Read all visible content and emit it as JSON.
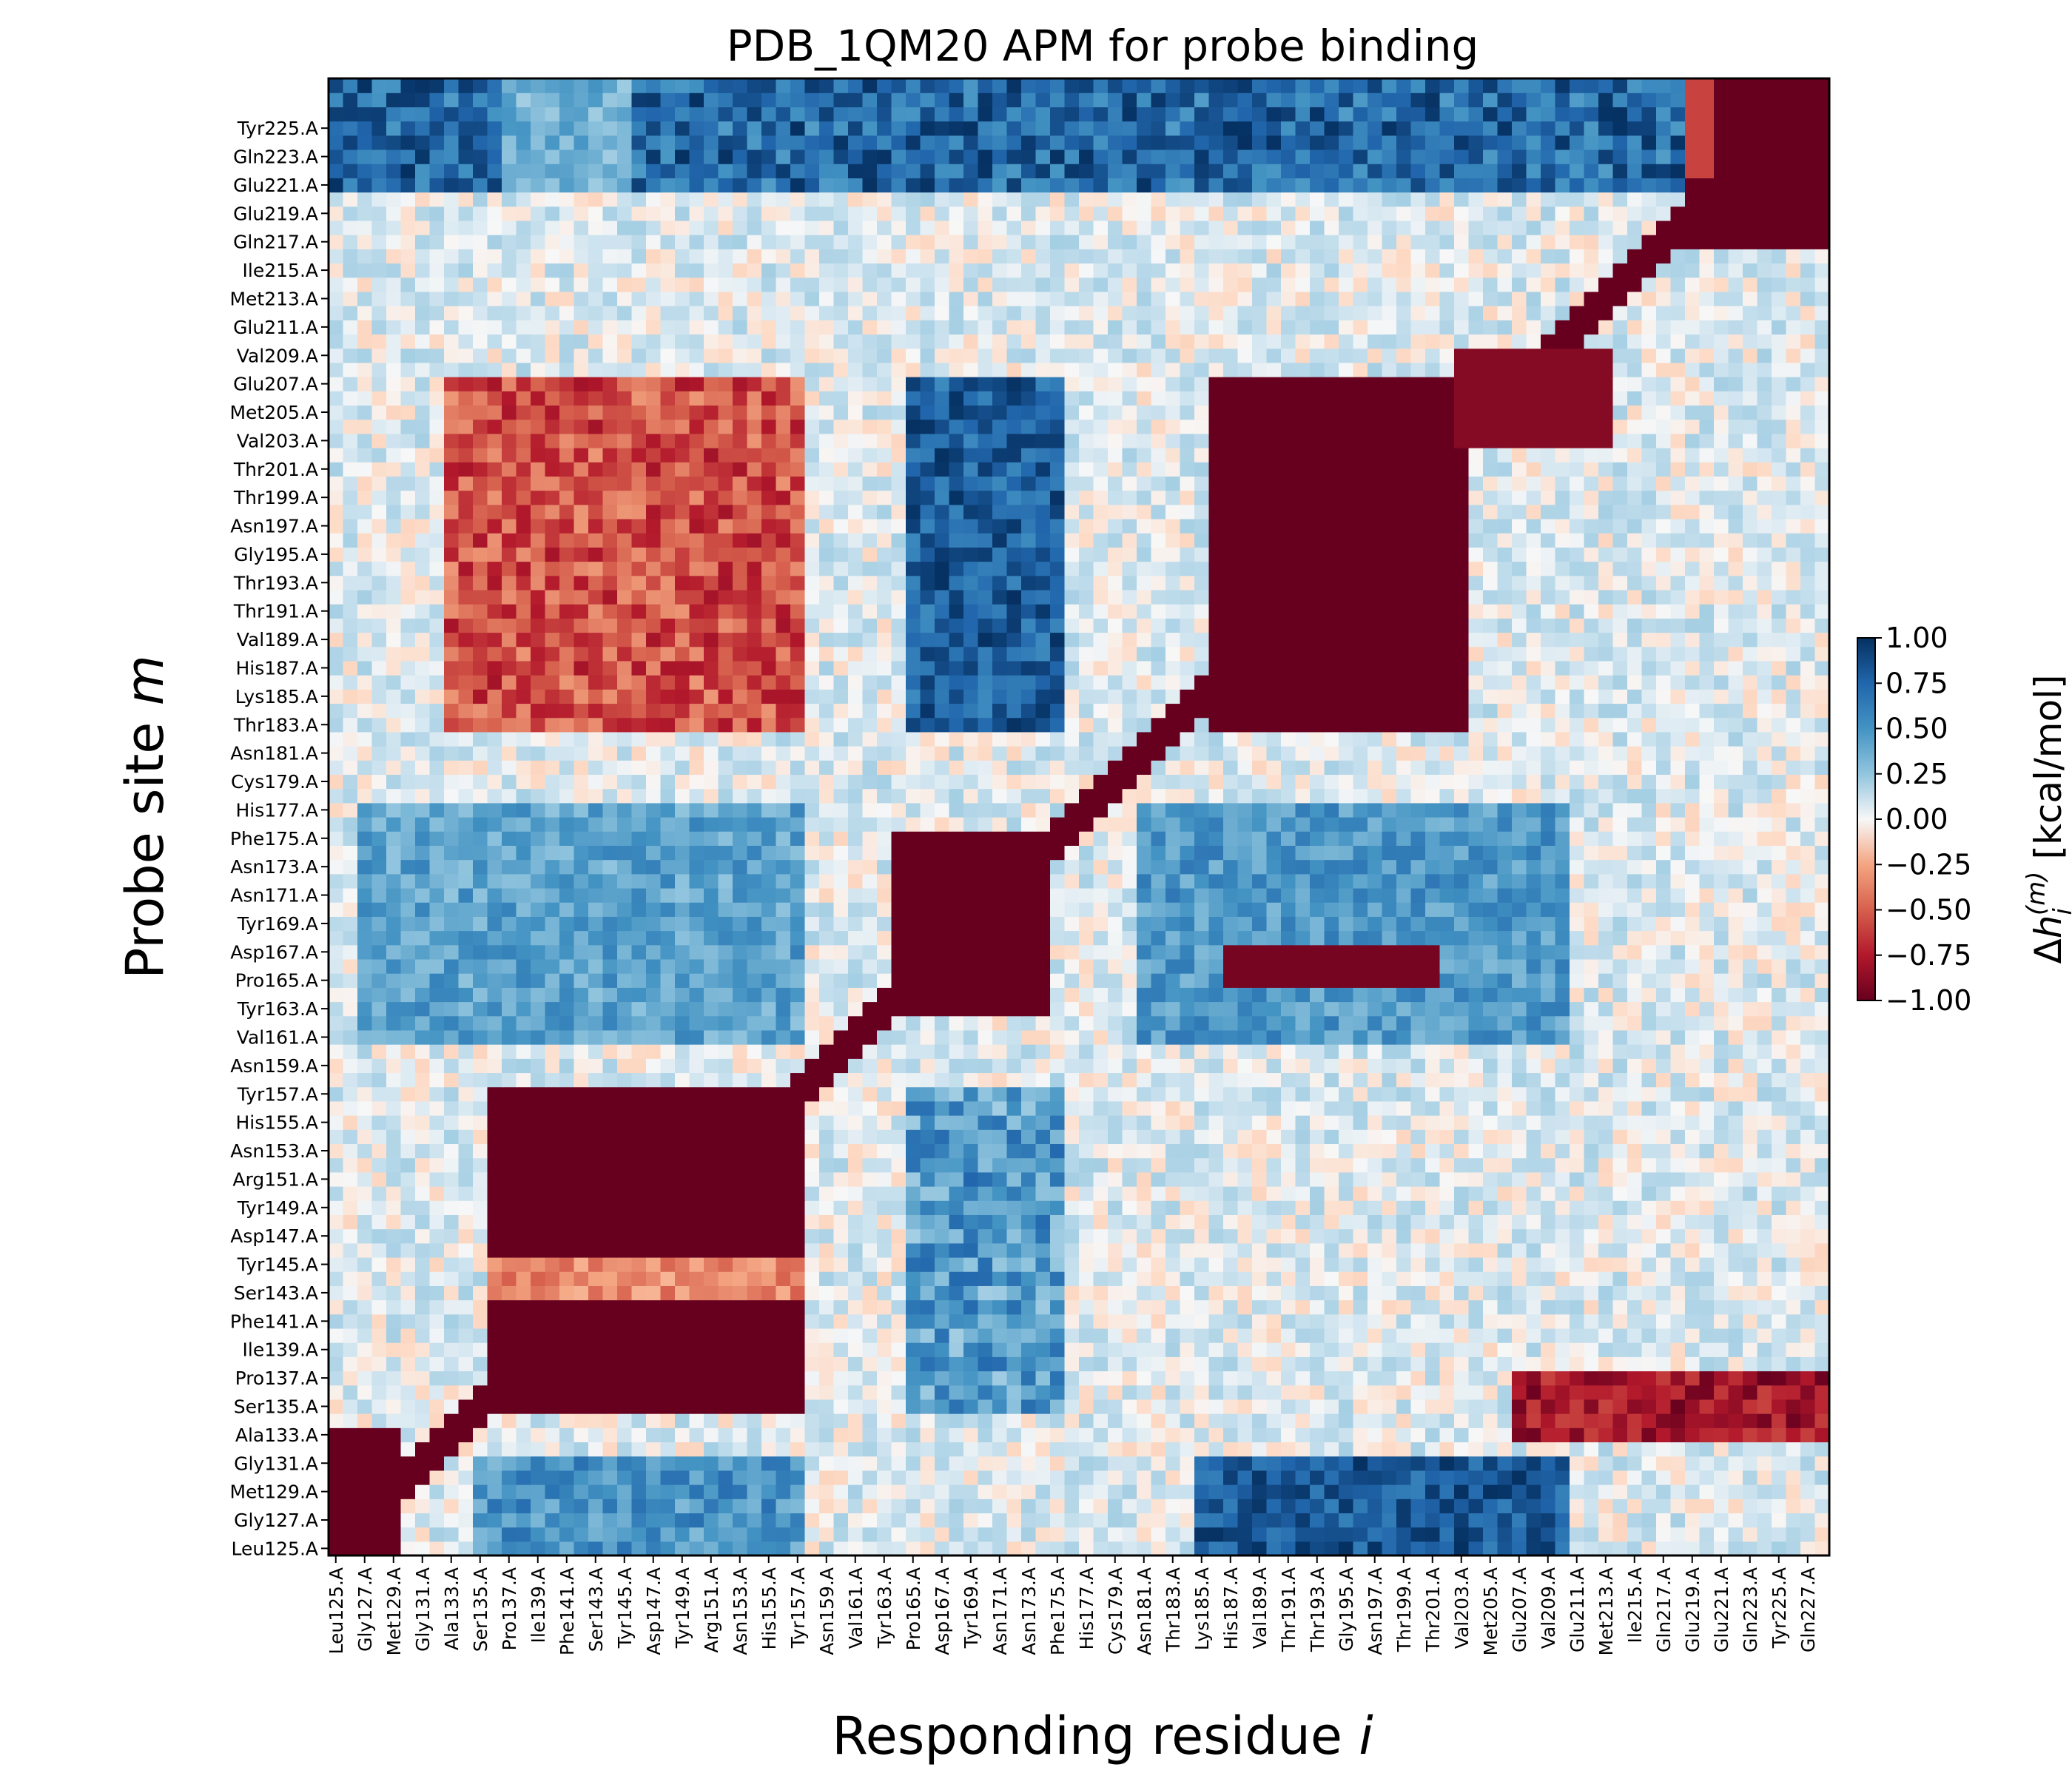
{
  "chart_data": {
    "type": "heatmap",
    "title": "PDB_1QM20 APM for probe binding",
    "xlabel": "Responding residue",
    "xlabel_var": "i",
    "ylabel": "Probe site",
    "ylabel_var": "m",
    "colorbar_label": "Δh_i^(m) [kcal/mol]",
    "colorbar_label_parts": {
      "delta": "Δ",
      "h": "h",
      "sub": "i",
      "sup": "(m)",
      "unit": "[kcal/mol]"
    },
    "colormap": "RdBu",
    "vmin": -1.0,
    "vmax": 1.0,
    "colorbar_ticks": [
      "1.00",
      "0.75",
      "0.50",
      "0.25",
      "0.00",
      "−0.25",
      "−0.50",
      "−0.75",
      "−1.00"
    ],
    "colorbar_tick_values": [
      1.0,
      0.75,
      0.5,
      0.25,
      0.0,
      -0.25,
      -0.5,
      -0.75,
      -1.0
    ],
    "residue_range": [
      125,
      228
    ],
    "x_tick_labels": [
      "Leu125.A",
      "Gly127.A",
      "Met129.A",
      "Gly131.A",
      "Ala133.A",
      "Ser135.A",
      "Pro137.A",
      "Ile139.A",
      "Phe141.A",
      "Ser143.A",
      "Tyr145.A",
      "Asp147.A",
      "Tyr149.A",
      "Arg151.A",
      "Asn153.A",
      "His155.A",
      "Tyr157.A",
      "Asn159.A",
      "Val161.A",
      "Tyr163.A",
      "Pro165.A",
      "Asp167.A",
      "Tyr169.A",
      "Asn171.A",
      "Asn173.A",
      "Phe175.A",
      "His177.A",
      "Cys179.A",
      "Asn181.A",
      "Thr183.A",
      "Lys185.A",
      "His187.A",
      "Val189.A",
      "Thr191.A",
      "Thr193.A",
      "Gly195.A",
      "Asn197.A",
      "Thr199.A",
      "Thr201.A",
      "Val203.A",
      "Met205.A",
      "Glu207.A",
      "Val209.A",
      "Glu211.A",
      "Met213.A",
      "Ile215.A",
      "Gln217.A",
      "Glu219.A",
      "Glu221.A",
      "Gln223.A",
      "Tyr225.A",
      "Gln227.A"
    ],
    "y_tick_labels": [
      "Tyr225.A",
      "Gln223.A",
      "Glu221.A",
      "Glu219.A",
      "Gln217.A",
      "Ile215.A",
      "Met213.A",
      "Glu211.A",
      "Val209.A",
      "Glu207.A",
      "Met205.A",
      "Val203.A",
      "Thr201.A",
      "Thr199.A",
      "Asn197.A",
      "Gly195.A",
      "Thr193.A",
      "Thr191.A",
      "Val189.A",
      "His187.A",
      "Lys185.A",
      "Thr183.A",
      "Asn181.A",
      "Cys179.A",
      "His177.A",
      "Phe175.A",
      "Asn173.A",
      "Asn171.A",
      "Tyr169.A",
      "Asp167.A",
      "Pro165.A",
      "Tyr163.A",
      "Val161.A",
      "Asn159.A",
      "Tyr157.A",
      "His155.A",
      "Asn153.A",
      "Arg151.A",
      "Tyr149.A",
      "Asp147.A",
      "Tyr145.A",
      "Ser143.A",
      "Phe141.A",
      "Ile139.A",
      "Pro137.A",
      "Ser135.A",
      "Ala133.A",
      "Gly131.A",
      "Met129.A",
      "Gly127.A",
      "Leu125.A"
    ],
    "approx_features": [
      {
        "desc": "top rows probes 221-226 respond positively across most residues",
        "probe_range": [
          221,
          226
        ],
        "resp_range": [
          125,
          218
        ],
        "value": 0.75
      },
      {
        "desc": "top-right corner strong negative",
        "probe_range": [
          217,
          226
        ],
        "resp_range": [
          219,
          228
        ],
        "value": -1.0
      },
      {
        "desc": "diagonal negative block 183-207",
        "probe_range": [
          183,
          207
        ],
        "resp_range": [
          186,
          205
        ],
        "value": -1.0
      },
      {
        "desc": "positive block probes 183-207 responding 165-175",
        "probe_range": [
          183,
          207
        ],
        "resp_range": [
          165,
          175
        ],
        "value": 0.8
      },
      {
        "desc": "diagonal negative block 163-175",
        "probe_range": [
          163,
          175
        ],
        "resp_range": [
          164,
          174
        ],
        "value": -1.0
      },
      {
        "desc": "diagonal negative block 135-157",
        "probe_range": [
          135,
          157
        ],
        "resp_range": [
          136,
          157
        ],
        "value": -1.0
      },
      {
        "desc": "bottom-left negative block",
        "probe_range": [
          125,
          133
        ],
        "resp_range": [
          125,
          129
        ],
        "value": -1.0
      },
      {
        "desc": "bottom rows positive band",
        "probe_range": [
          125,
          131
        ],
        "resp_range": [
          185,
          210
        ],
        "value": 0.9
      }
    ]
  }
}
